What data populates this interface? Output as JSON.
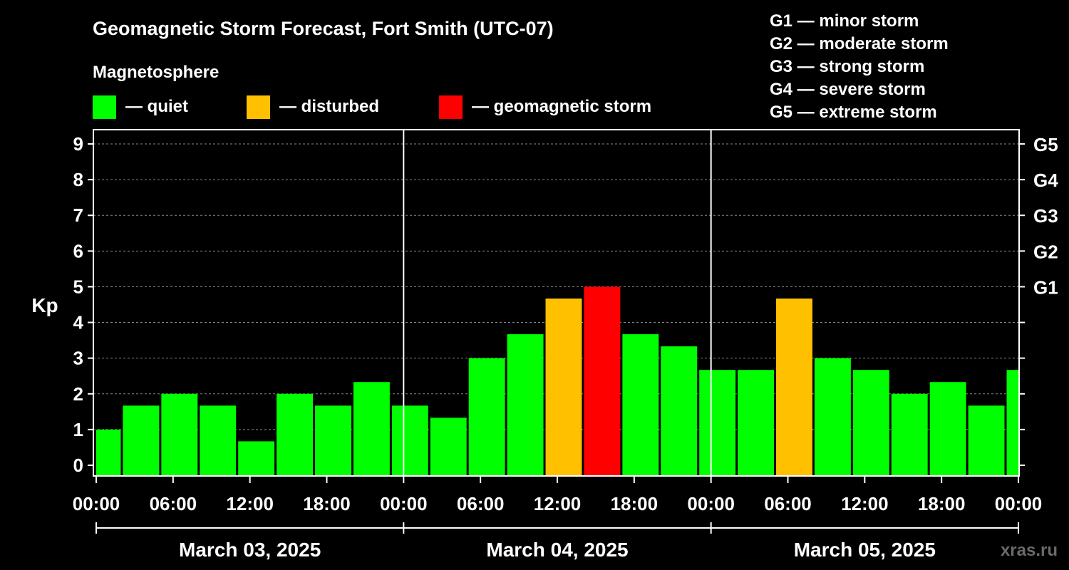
{
  "chart_data": {
    "type": "bar",
    "title": "Geomagnetic Storm Forecast, Fort Smith (UTC-07)",
    "legend_title": "Magnetosphere",
    "legend": [
      {
        "key": "quiet",
        "label": "— quiet",
        "color": "#00ff00"
      },
      {
        "key": "disturbed",
        "label": "— disturbed",
        "color": "#ffc000"
      },
      {
        "key": "storm",
        "label": "— geomagnetic storm",
        "color": "#ff0000"
      }
    ],
    "storm_scale": [
      "G1 — minor storm",
      "G2 — moderate storm",
      "G3 — strong storm",
      "G4 — severe storm",
      "G5 — extreme storm"
    ],
    "ylabel": "Kp",
    "ylim": [
      -0.3,
      9.4
    ],
    "y_ticks": [
      0,
      1,
      2,
      3,
      4,
      5,
      6,
      7,
      8,
      9
    ],
    "g_ticks": [
      {
        "label": "G1",
        "kp": 5
      },
      {
        "label": "G2",
        "kp": 6
      },
      {
        "label": "G3",
        "kp": 7
      },
      {
        "label": "G4",
        "kp": 8
      },
      {
        "label": "G5",
        "kp": 9
      }
    ],
    "x_range_hours": [
      0,
      72
    ],
    "x_ticks": [
      {
        "label": "00:00",
        "hour": 0
      },
      {
        "label": "06:00",
        "hour": 6
      },
      {
        "label": "12:00",
        "hour": 12
      },
      {
        "label": "18:00",
        "hour": 18
      },
      {
        "label": "00:00",
        "hour": 24
      },
      {
        "label": "06:00",
        "hour": 30
      },
      {
        "label": "12:00",
        "hour": 36
      },
      {
        "label": "18:00",
        "hour": 42
      },
      {
        "label": "00:00",
        "hour": 48
      },
      {
        "label": "06:00",
        "hour": 54
      },
      {
        "label": "12:00",
        "hour": 60
      },
      {
        "label": "18:00",
        "hour": 66
      },
      {
        "label": "00:00",
        "hour": 72
      }
    ],
    "day_boundaries_hours": [
      24,
      48
    ],
    "days": [
      {
        "label": "March 03, 2025",
        "start_hour": 0,
        "end_hour": 24
      },
      {
        "label": "March 04, 2025",
        "start_hour": 24,
        "end_hour": 48
      },
      {
        "label": "March 05, 2025",
        "start_hour": 48,
        "end_hour": 72
      }
    ],
    "bars": [
      {
        "start": 0,
        "end": 2,
        "kp": 1.0,
        "level": "quiet"
      },
      {
        "start": 2,
        "end": 5,
        "kp": 1.67,
        "level": "quiet"
      },
      {
        "start": 5,
        "end": 8,
        "kp": 2.0,
        "level": "quiet"
      },
      {
        "start": 8,
        "end": 11,
        "kp": 1.67,
        "level": "quiet"
      },
      {
        "start": 11,
        "end": 14,
        "kp": 0.67,
        "level": "quiet"
      },
      {
        "start": 14,
        "end": 17,
        "kp": 2.0,
        "level": "quiet"
      },
      {
        "start": 17,
        "end": 20,
        "kp": 1.67,
        "level": "quiet"
      },
      {
        "start": 20,
        "end": 23,
        "kp": 2.33,
        "level": "quiet"
      },
      {
        "start": 23,
        "end": 26,
        "kp": 1.67,
        "level": "quiet"
      },
      {
        "start": 26,
        "end": 29,
        "kp": 1.33,
        "level": "quiet"
      },
      {
        "start": 29,
        "end": 32,
        "kp": 3.0,
        "level": "quiet"
      },
      {
        "start": 32,
        "end": 35,
        "kp": 3.67,
        "level": "quiet"
      },
      {
        "start": 35,
        "end": 38,
        "kp": 4.67,
        "level": "disturbed"
      },
      {
        "start": 38,
        "end": 41,
        "kp": 5.0,
        "level": "storm"
      },
      {
        "start": 41,
        "end": 44,
        "kp": 3.67,
        "level": "quiet"
      },
      {
        "start": 44,
        "end": 47,
        "kp": 3.33,
        "level": "quiet"
      },
      {
        "start": 47,
        "end": 50,
        "kp": 2.67,
        "level": "quiet"
      },
      {
        "start": 50,
        "end": 53,
        "kp": 2.67,
        "level": "quiet"
      },
      {
        "start": 53,
        "end": 56,
        "kp": 4.67,
        "level": "disturbed"
      },
      {
        "start": 56,
        "end": 59,
        "kp": 3.0,
        "level": "quiet"
      },
      {
        "start": 59,
        "end": 62,
        "kp": 2.67,
        "level": "quiet"
      },
      {
        "start": 62,
        "end": 65,
        "kp": 2.0,
        "level": "quiet"
      },
      {
        "start": 65,
        "end": 68,
        "kp": 2.33,
        "level": "quiet"
      },
      {
        "start": 68,
        "end": 71,
        "kp": 1.67,
        "level": "quiet"
      },
      {
        "start": 71,
        "end": 72,
        "kp": 2.67,
        "level": "quiet"
      }
    ],
    "colors": {
      "quiet": "#00ff00",
      "disturbed": "#ffc000",
      "storm": "#ff0000",
      "grid": "#888888",
      "axis": "#ffffff"
    }
  },
  "watermark": "xras.ru"
}
